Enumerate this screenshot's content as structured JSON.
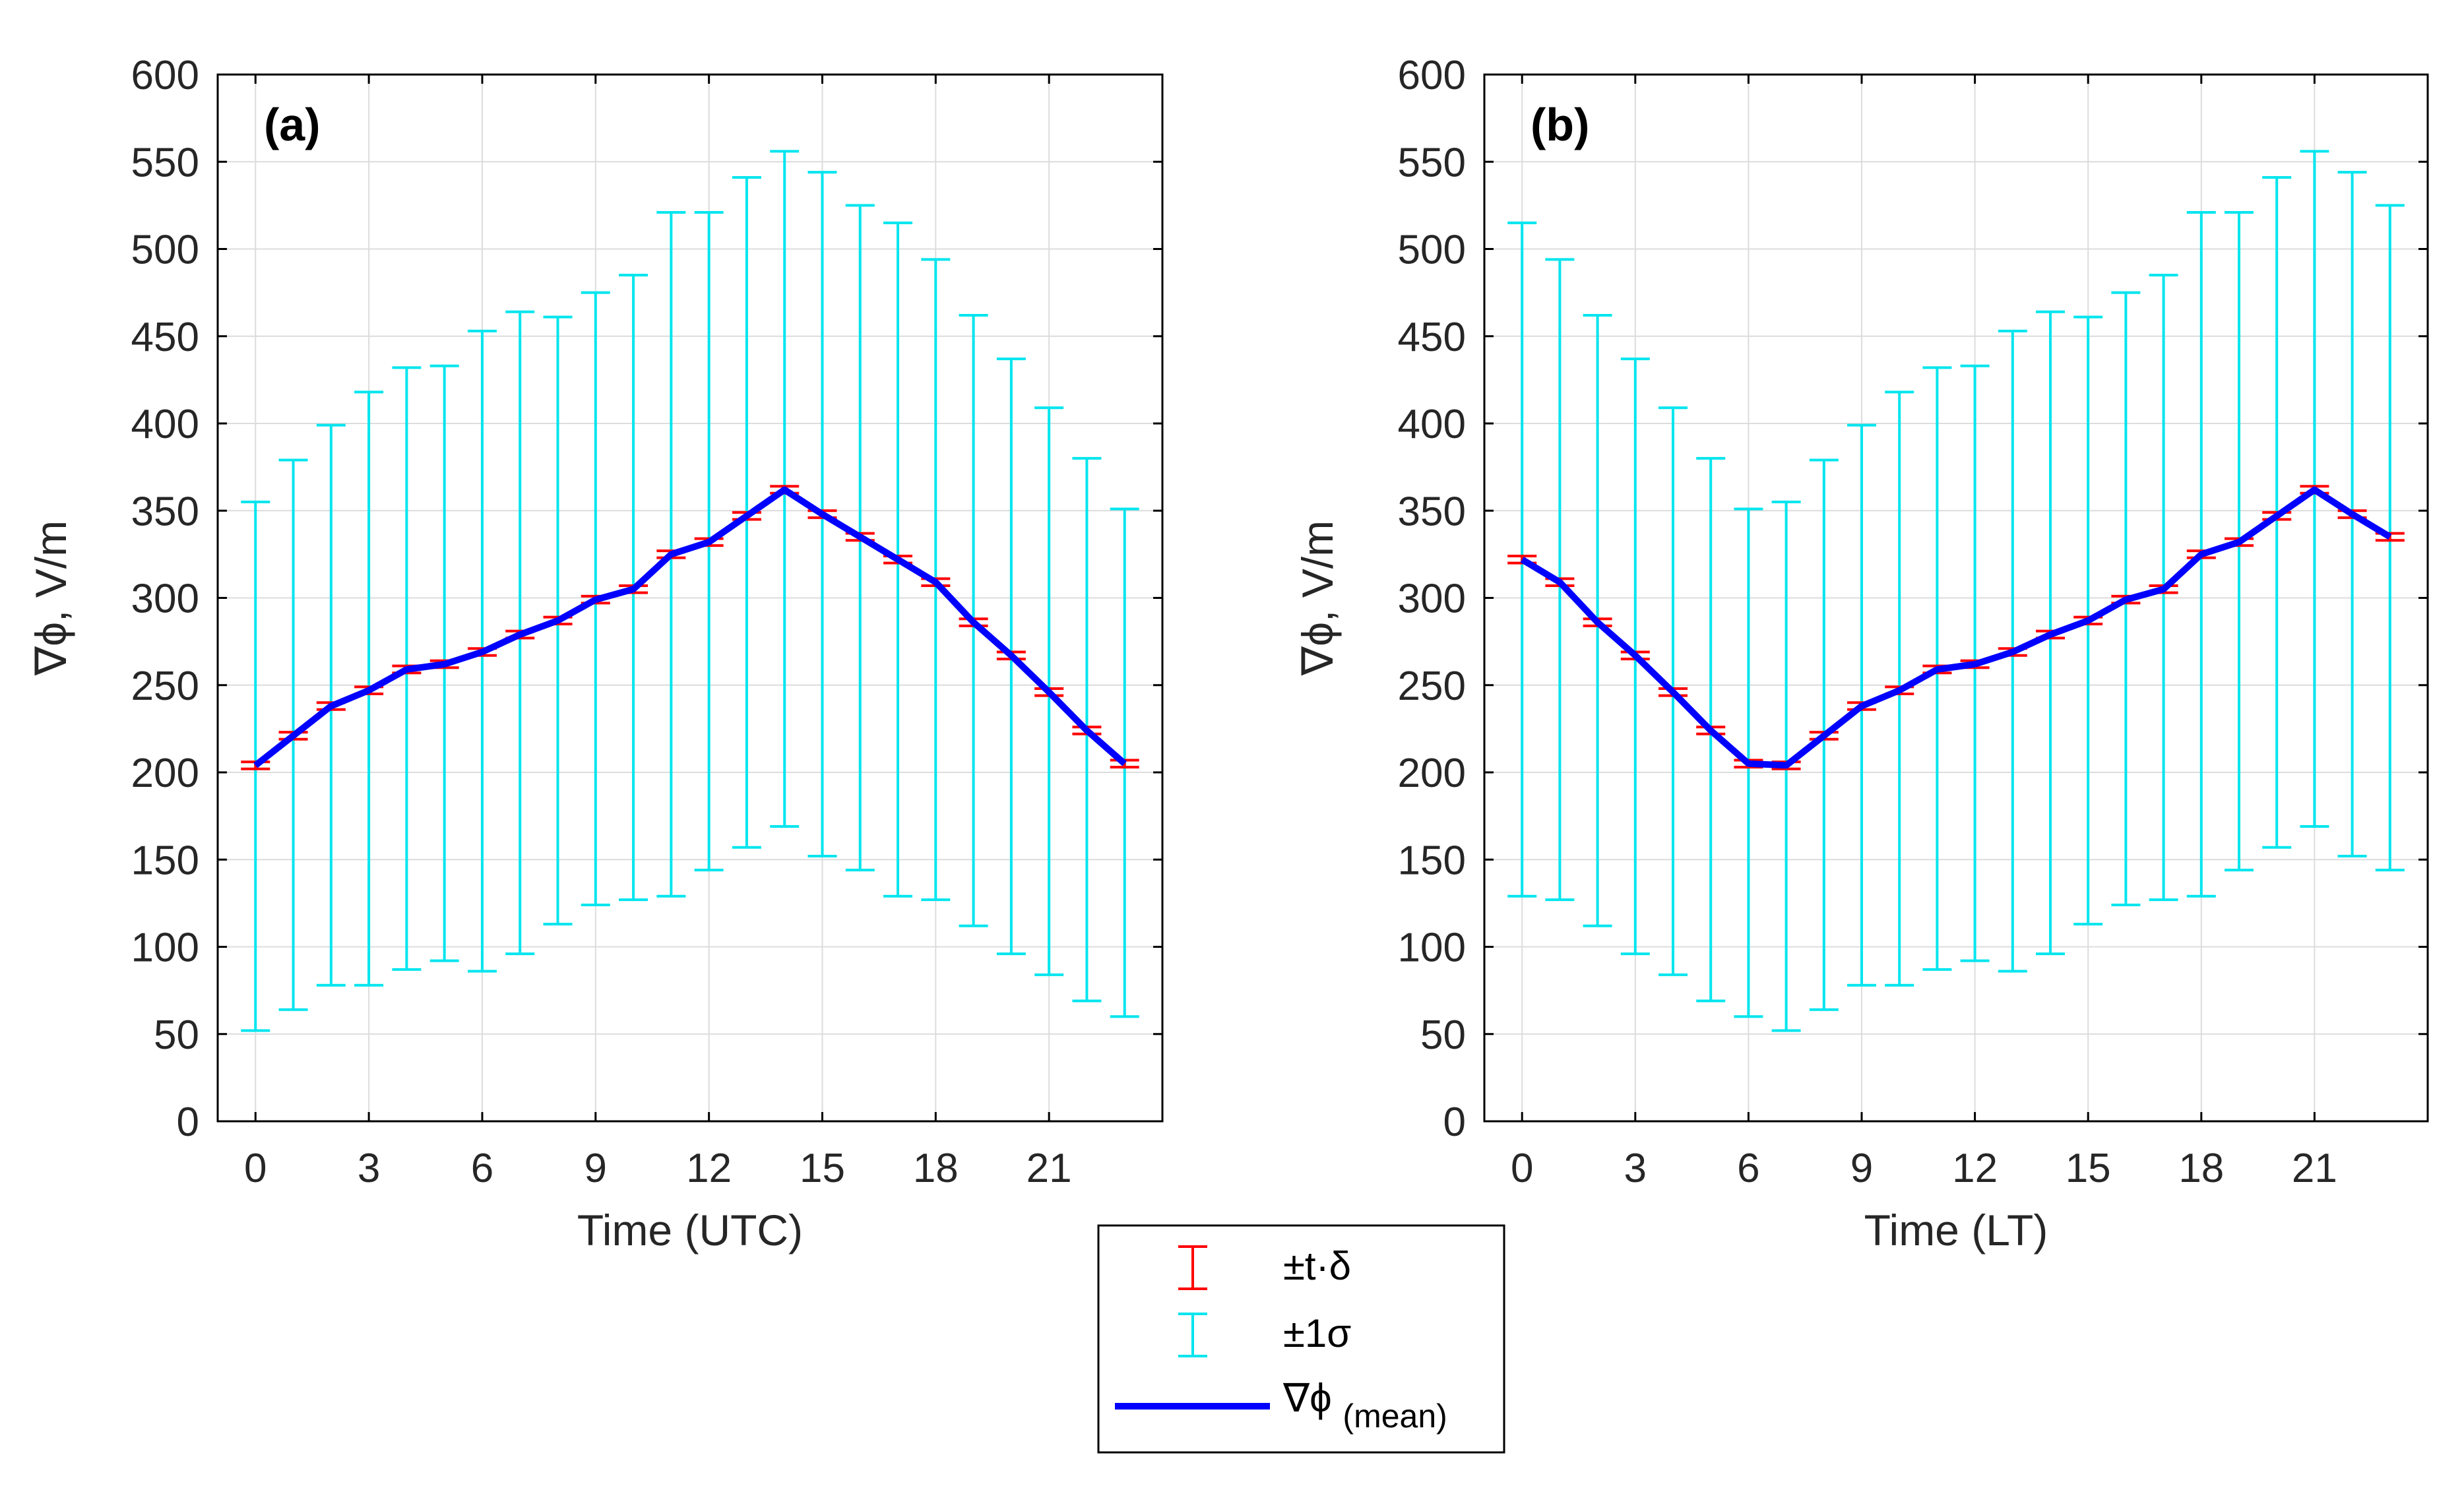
{
  "figure": {
    "legend": {
      "ci_label": "±t·δ",
      "sd_label": "±1σ",
      "mean_label_main": "∇ϕ",
      "mean_label_sub": "(mean)"
    },
    "colors": {
      "mean_line": "#0000FF",
      "ci_bar": "#FF0000",
      "sd_bar": "#00E5EE",
      "grid": "#DCDCDC",
      "axes": "#000000"
    }
  },
  "chart_data": [
    {
      "type": "line",
      "panel_label": "(a)",
      "title": "",
      "xlabel": "Time (UTC)",
      "ylabel": "∇ϕ, V/m",
      "xlim": [
        -1,
        24
      ],
      "ylim": [
        0,
        600
      ],
      "x_ticks": [
        0,
        3,
        6,
        9,
        12,
        15,
        18,
        21
      ],
      "y_ticks": [
        0,
        50,
        100,
        150,
        200,
        250,
        300,
        350,
        400,
        450,
        500,
        550,
        600
      ],
      "grid": true,
      "x": [
        0,
        1,
        2,
        3,
        4,
        5,
        6,
        7,
        8,
        9,
        10,
        11,
        12,
        13,
        14,
        15,
        16,
        17,
        18,
        19,
        20,
        21,
        22,
        23
      ],
      "series": [
        {
          "name": "∇ϕ(mean)",
          "values": [
            204,
            221,
            238,
            247,
            259,
            262,
            269,
            279,
            287,
            299,
            305,
            325,
            332,
            347,
            362,
            348,
            335,
            322,
            309,
            286,
            267,
            246,
            224,
            205
          ],
          "ci_halfwidth": [
            2,
            2,
            2,
            2,
            2,
            2,
            2,
            2,
            2,
            2,
            2,
            2,
            2,
            2,
            2,
            2,
            2,
            2,
            2,
            2,
            2,
            2,
            2,
            2
          ]
        }
      ],
      "sd_upper": [
        355,
        379,
        399,
        418,
        432,
        433,
        453,
        464,
        461,
        475,
        485,
        521,
        521,
        541,
        556,
        544,
        525,
        515,
        494,
        462,
        437,
        409,
        380,
        351
      ],
      "sd_lower": [
        52,
        64,
        78,
        78,
        87,
        92,
        86,
        96,
        113,
        124,
        127,
        129,
        144,
        157,
        169,
        152,
        144,
        129,
        127,
        112,
        96,
        84,
        69,
        60
      ]
    },
    {
      "type": "line",
      "panel_label": "(b)",
      "title": "",
      "xlabel": "Time (LT)",
      "ylabel": "∇ϕ, V/m",
      "xlim": [
        -1,
        24
      ],
      "ylim": [
        0,
        600
      ],
      "x_ticks": [
        0,
        3,
        6,
        9,
        12,
        15,
        18,
        21
      ],
      "y_ticks": [
        0,
        50,
        100,
        150,
        200,
        250,
        300,
        350,
        400,
        450,
        500,
        550,
        600
      ],
      "grid": true,
      "x": [
        0,
        1,
        2,
        3,
        4,
        5,
        6,
        7,
        8,
        9,
        10,
        11,
        12,
        13,
        14,
        15,
        16,
        17,
        18,
        19,
        20,
        21,
        22,
        23
      ],
      "series": [
        {
          "name": "∇ϕ(mean)",
          "values": [
            322,
            309,
            286,
            267,
            246,
            224,
            205,
            204,
            221,
            238,
            247,
            259,
            262,
            269,
            279,
            287,
            299,
            305,
            325,
            332,
            347,
            362,
            348,
            335
          ],
          "ci_halfwidth": [
            2,
            2,
            2,
            2,
            2,
            2,
            2,
            2,
            2,
            2,
            2,
            2,
            2,
            2,
            2,
            2,
            2,
            2,
            2,
            2,
            2,
            2,
            2,
            2
          ]
        }
      ],
      "sd_upper": [
        515,
        494,
        462,
        437,
        409,
        380,
        351,
        355,
        379,
        399,
        418,
        432,
        433,
        453,
        464,
        461,
        475,
        485,
        521,
        521,
        541,
        556,
        544,
        525
      ],
      "sd_lower": [
        129,
        127,
        112,
        96,
        84,
        69,
        60,
        52,
        64,
        78,
        78,
        87,
        92,
        86,
        96,
        113,
        124,
        127,
        129,
        144,
        157,
        169,
        152,
        144
      ]
    }
  ]
}
